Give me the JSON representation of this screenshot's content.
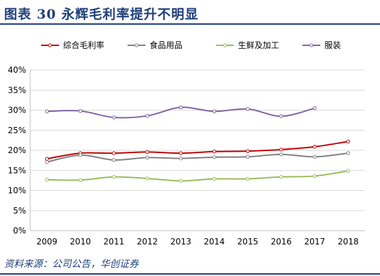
{
  "figure": {
    "title": "图表 30   永辉毛利率提升不明显",
    "source": "资料来源：公司公告，华创证券"
  },
  "chart_data": {
    "type": "line",
    "title": "",
    "xlabel": "",
    "ylabel": "",
    "categories": [
      "2009",
      "2010",
      "2011",
      "2012",
      "2013",
      "2014",
      "2015",
      "2016",
      "2017",
      "2018"
    ],
    "y_ticks": [
      "0%",
      "5%",
      "10%",
      "15%",
      "20%",
      "25%",
      "30%",
      "35%",
      "40%"
    ],
    "ylim": [
      0,
      40
    ],
    "grid": true,
    "legend_position": "top",
    "series": [
      {
        "name": "综合毛利率",
        "color": "#c00000",
        "values": [
          17.9,
          19.3,
          19.3,
          19.6,
          19.3,
          19.7,
          19.8,
          20.2,
          20.9,
          22.2
        ]
      },
      {
        "name": "食品用品",
        "color": "#808080",
        "values": [
          17.1,
          18.8,
          17.6,
          18.2,
          18.0,
          18.3,
          18.4,
          19.0,
          18.4,
          19.3
        ]
      },
      {
        "name": "生鲜及加工",
        "color": "#9bbb59",
        "values": [
          12.7,
          12.6,
          13.4,
          13.0,
          12.4,
          12.9,
          12.9,
          13.4,
          13.6,
          14.9
        ]
      },
      {
        "name": "服装",
        "color": "#8064a2",
        "values": [
          29.7,
          29.8,
          28.2,
          28.6,
          30.7,
          29.7,
          30.3,
          28.5,
          30.5,
          null
        ]
      }
    ]
  }
}
